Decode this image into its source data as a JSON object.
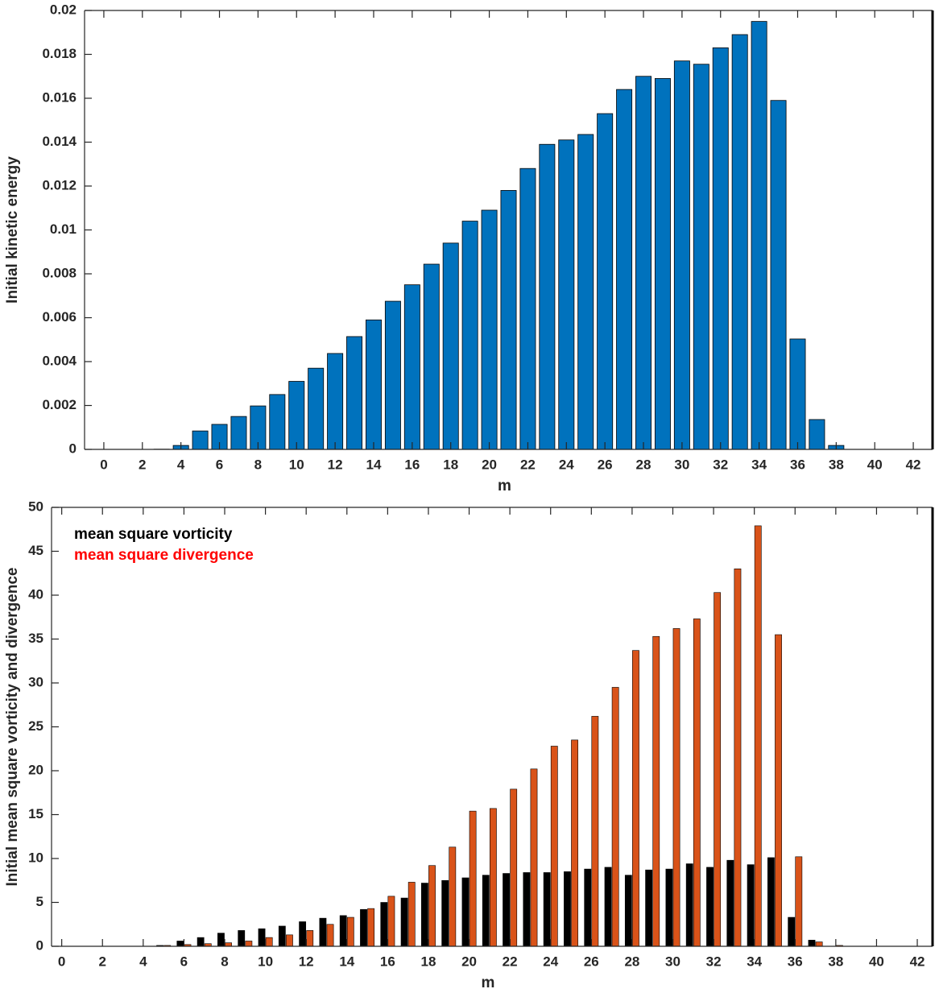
{
  "chart_data": [
    {
      "type": "bar",
      "ylabel": "Initial kinetic energy",
      "xlabel": "m",
      "categories": [
        0,
        1,
        2,
        3,
        4,
        5,
        6,
        7,
        8,
        9,
        10,
        11,
        12,
        13,
        14,
        15,
        16,
        17,
        18,
        19,
        20,
        21,
        22,
        23,
        24,
        25,
        26,
        27,
        28,
        29,
        30,
        31,
        32,
        33,
        34,
        35,
        36,
        37,
        38,
        39,
        40,
        41,
        42
      ],
      "values": [
        0,
        0,
        0,
        1e-05,
        0.00018,
        0.00084,
        0.00114,
        0.0015,
        0.00198,
        0.0025,
        0.0031,
        0.0037,
        0.00437,
        0.00514,
        0.0059,
        0.00675,
        0.0075,
        0.00844,
        0.0094,
        0.0104,
        0.0109,
        0.0118,
        0.0128,
        0.0139,
        0.0141,
        0.01435,
        0.0153,
        0.0164,
        0.017,
        0.0169,
        0.0177,
        0.01755,
        0.0183,
        0.0189,
        0.0195,
        0.0159,
        0.00503,
        0.00136,
        0.00018,
        0,
        0,
        0,
        0
      ],
      "color": "#0072bd",
      "xlim": [
        -1,
        43
      ],
      "xticks": [
        0,
        2,
        4,
        6,
        8,
        10,
        12,
        14,
        16,
        18,
        20,
        22,
        24,
        26,
        28,
        30,
        32,
        34,
        36,
        38,
        40,
        42
      ],
      "ylim": [
        0,
        0.02
      ],
      "yticks": [
        0,
        0.002,
        0.004,
        0.006,
        0.008,
        0.01,
        0.012,
        0.014,
        0.016,
        0.018,
        0.02
      ],
      "grid": false
    },
    {
      "type": "grouped_bar",
      "ylabel": "Initial mean square vorticity and divergence",
      "xlabel": "m",
      "categories": [
        0,
        1,
        2,
        3,
        4,
        5,
        6,
        7,
        8,
        9,
        10,
        11,
        12,
        13,
        14,
        15,
        16,
        17,
        18,
        19,
        20,
        21,
        22,
        23,
        24,
        25,
        26,
        27,
        28,
        29,
        30,
        31,
        32,
        33,
        34,
        35,
        36,
        37,
        38,
        39,
        40,
        41,
        42
      ],
      "series": [
        {
          "name": "mean square vorticity",
          "color": "#000000",
          "label_color": "#000000",
          "values": [
            0,
            0,
            0,
            0,
            0,
            0.1,
            0.6,
            1.0,
            1.5,
            1.8,
            2.0,
            2.3,
            2.8,
            3.2,
            3.5,
            4.2,
            5.0,
            5.5,
            7.2,
            7.5,
            7.8,
            8.1,
            8.3,
            8.4,
            8.4,
            8.5,
            8.8,
            9.0,
            8.1,
            8.7,
            8.8,
            9.4,
            9.0,
            9.8,
            9.3,
            10.1,
            3.3,
            0.7,
            0,
            0,
            0,
            0,
            0
          ]
        },
        {
          "name": "mean square divergence",
          "color": "#d95319",
          "label_color": "#ff0000",
          "values": [
            0,
            0,
            0,
            0,
            0,
            0.1,
            0.2,
            0.3,
            0.4,
            0.6,
            1.0,
            1.3,
            1.8,
            2.5,
            3.3,
            4.3,
            5.7,
            7.3,
            9.2,
            11.3,
            15.4,
            15.7,
            17.9,
            20.2,
            22.8,
            23.5,
            26.2,
            29.5,
            33.7,
            35.3,
            36.2,
            37.3,
            40.3,
            43.0,
            47.9,
            35.5,
            10.2,
            0.5,
            0.1,
            0,
            0,
            0,
            0
          ]
        }
      ],
      "legend": "upper left",
      "xlim": [
        -0.5,
        42.75
      ],
      "xticks": [
        0,
        2,
        4,
        6,
        8,
        10,
        12,
        14,
        16,
        18,
        20,
        22,
        24,
        26,
        28,
        30,
        32,
        34,
        36,
        38,
        40,
        42
      ],
      "ylim": [
        0,
        50
      ],
      "yticks": [
        0,
        5,
        10,
        15,
        20,
        25,
        30,
        35,
        40,
        45,
        50
      ],
      "grid": false
    }
  ]
}
